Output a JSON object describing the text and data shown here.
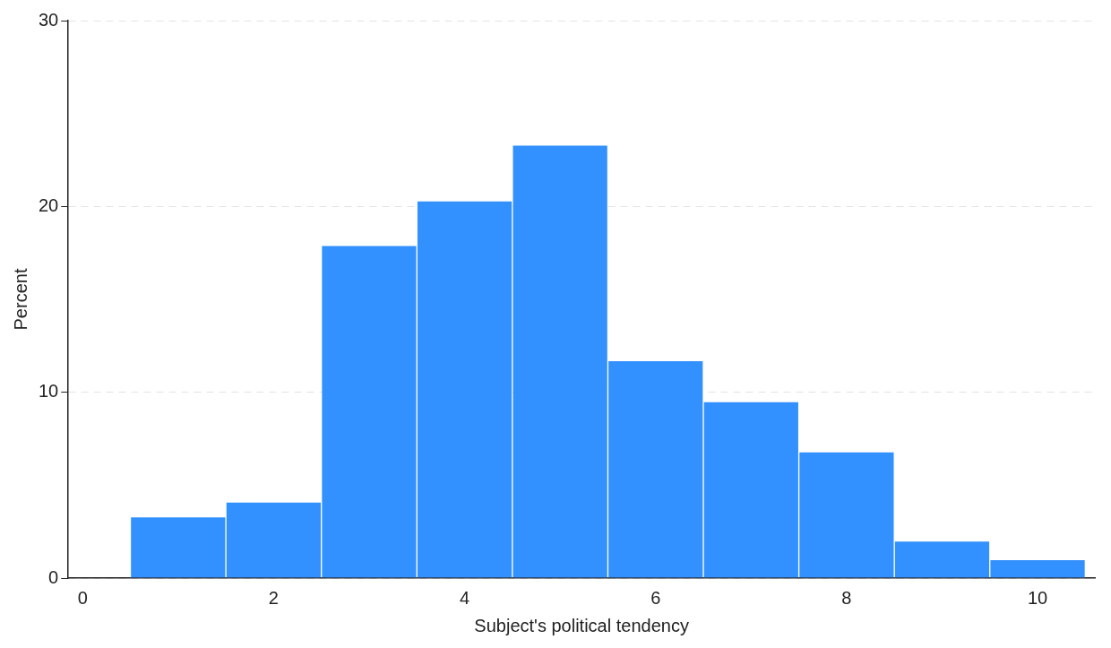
{
  "chart_data": {
    "type": "histogram",
    "xlabel": "Subject's political tendency",
    "ylabel": "Percent",
    "bins": [
      0.5,
      1.5,
      2.5,
      3.5,
      4.5,
      5.5,
      6.5,
      7.5,
      8.5,
      9.5,
      10.5
    ],
    "values": [
      3.3,
      4.1,
      17.9,
      20.3,
      23.3,
      11.7,
      9.5,
      6.8,
      2.0,
      1.0
    ],
    "color": "#3390ff",
    "xlim": [
      -0.15,
      10.6
    ],
    "xticks": [
      0,
      2,
      4,
      6,
      8,
      10
    ],
    "ylim": [
      0,
      30
    ],
    "yticks": [
      0,
      10,
      20,
      30
    ],
    "grid": "y"
  }
}
